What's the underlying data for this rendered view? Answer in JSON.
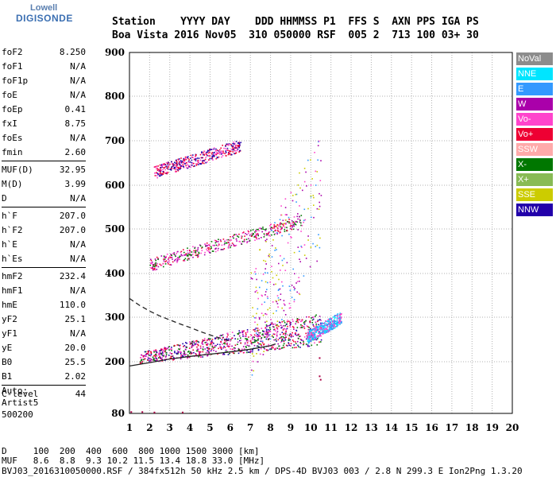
{
  "logo": {
    "line1": "Lowell",
    "line2": "DIGISONDE"
  },
  "header": {
    "labels": "Station    YYYY DAY    DDD HHMMSS P1  FFS S  AXN PPS IGA PS",
    "values": "Boa Vista 2016 Nov05  310 050000 RSF  005 2  713 100 03+ 30"
  },
  "params": {
    "group1": [
      {
        "label": "foF2",
        "value": "8.250"
      },
      {
        "label": "foF1",
        "value": "N/A"
      },
      {
        "label": "foF1p",
        "value": "N/A"
      },
      {
        "label": "foE",
        "value": "N/A"
      },
      {
        "label": "foEp",
        "value": "0.41"
      },
      {
        "label": "fxI",
        "value": "8.75"
      },
      {
        "label": "foEs",
        "value": "N/A"
      },
      {
        "label": "fmin",
        "value": "2.60"
      }
    ],
    "group2": [
      {
        "label": "MUF(D)",
        "value": "32.95"
      },
      {
        "label": "M(D)",
        "value": "3.99"
      },
      {
        "label": "D",
        "value": "N/A"
      }
    ],
    "group3": [
      {
        "label": "h`F",
        "value": "207.0"
      },
      {
        "label": "h`F2",
        "value": "207.0"
      },
      {
        "label": "h`E",
        "value": "N/A"
      },
      {
        "label": "h`Es",
        "value": "N/A"
      }
    ],
    "group4": [
      {
        "label": "hmF2",
        "value": "232.4"
      },
      {
        "label": "hmF1",
        "value": "N/A"
      },
      {
        "label": "hmE",
        "value": "110.0"
      },
      {
        "label": "yF2",
        "value": "25.1"
      },
      {
        "label": "yF1",
        "value": "N/A"
      },
      {
        "label": "yE",
        "value": "20.0"
      },
      {
        "label": "B0",
        "value": "25.5"
      },
      {
        "label": "B1",
        "value": "2.02"
      }
    ],
    "group5": [
      {
        "label": "C-level",
        "value": "44"
      }
    ]
  },
  "auto": {
    "line1": "Auto:",
    "line2": "Artist5",
    "line3": "500200"
  },
  "legend": [
    {
      "label": "NoVal",
      "color": "#8c8c8c",
      "text": "#ffffff"
    },
    {
      "label": "NNE",
      "color": "#00e5ff",
      "text": "#ffffff"
    },
    {
      "label": "E",
      "color": "#3399ff",
      "text": "#ffffff"
    },
    {
      "label": "W",
      "color": "#aa00aa",
      "text": "#ffffff"
    },
    {
      "label": "Vo-",
      "color": "#ff44cc",
      "text": "#ffffff"
    },
    {
      "label": "Vo+",
      "color": "#ee0033",
      "text": "#ffffff"
    },
    {
      "label": "SSW",
      "color": "#ffaaaa",
      "text": "#ffffff"
    },
    {
      "label": "X-",
      "color": "#007700",
      "text": "#ffffff"
    },
    {
      "label": "X+",
      "color": "#88bb55",
      "text": "#ffffff"
    },
    {
      "label": "SSE",
      "color": "#cccc00",
      "text": "#ffffff"
    },
    {
      "label": "NNW",
      "color": "#2200aa",
      "text": "#ffffff"
    }
  ],
  "footer": {
    "line1": "D     100  200  400  600  800 1000 1500 3000 [km]",
    "line2": "MUF   8.6  8.8  9.3 10.2 11.5 13.4 18.8 33.0 [MHz]",
    "line3": "BVJ03_2016310050000.RSF / 384fx512h 50 kHz 2.5 km / DPS-4D BVJ03 003 / 2.8 N 299.3 E Ion2Png 1.3.20"
  },
  "chart_data": {
    "type": "scatter",
    "xlim": [
      1,
      20
    ],
    "ylim": [
      80,
      900
    ],
    "xticks": [
      1,
      2,
      3,
      4,
      5,
      6,
      7,
      8,
      9,
      10,
      11,
      12,
      13,
      14,
      15,
      16,
      17,
      18,
      19,
      20
    ],
    "yticks": [
      80,
      200,
      300,
      400,
      500,
      600,
      700,
      800,
      900
    ],
    "grid": "dotted",
    "legend_placement": "right",
    "traces": [
      {
        "name": "F2 O-trace",
        "x_range": [
          1.5,
          10.5
        ],
        "y_start": 210,
        "y_end": 275,
        "colors": [
          "Vo+",
          "Vo-",
          "X-",
          "NNW",
          "W"
        ]
      },
      {
        "name": "F2 X-trace",
        "x_range": [
          9.8,
          11.5
        ],
        "y_start": 255,
        "y_end": 300,
        "colors": [
          "E",
          "NNE",
          "Vo-"
        ]
      },
      {
        "name": "2F multihop",
        "x_range": [
          2,
          9.5
        ],
        "y_start": 420,
        "y_end": 520,
        "colors": [
          "Vo+",
          "Vo-",
          "W",
          "X-"
        ]
      },
      {
        "name": "3F multihop",
        "x_range": [
          2.2,
          6.5
        ],
        "y_start": 630,
        "y_end": 690,
        "colors": [
          "Vo+",
          "Vo-",
          "NNW"
        ]
      },
      {
        "name": "Spread scatter",
        "x_range": [
          7,
          10.5
        ],
        "y_start": 300,
        "y_end": 580,
        "colors": [
          "Vo-",
          "W",
          "SSE",
          "E"
        ]
      }
    ],
    "profile_dashed": {
      "x": [
        1.0,
        1.5,
        2.0,
        2.5,
        3.0,
        3.5,
        4.0,
        4.5,
        5.0,
        5.5,
        6.0
      ],
      "y": [
        343,
        327,
        314,
        303,
        294,
        285,
        277,
        268,
        260,
        253,
        246
      ]
    },
    "profile_solid": {
      "x": [
        1.0,
        2.0,
        3.0,
        4.0,
        5.0,
        6.0,
        7.0,
        8.0,
        8.25
      ],
      "y": [
        190,
        198,
        206,
        212,
        217,
        222,
        228,
        236,
        240
      ]
    }
  }
}
